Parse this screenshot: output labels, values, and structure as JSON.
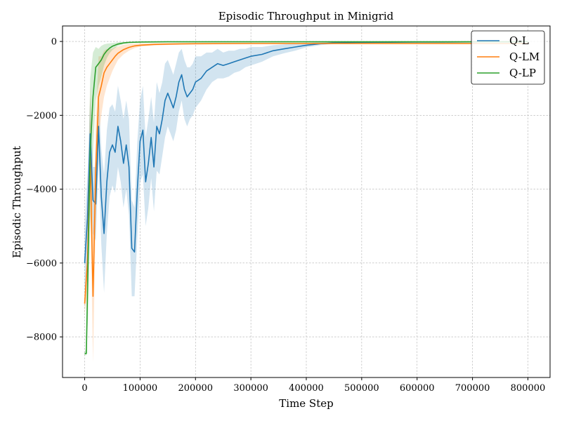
{
  "chart_data": {
    "type": "line",
    "title": "Episodic Throughput in Minigrid",
    "xlabel": "Time Step",
    "ylabel": "Episodic Throughput",
    "xlim": [
      -40000,
      840000
    ],
    "ylim": [
      -9100,
      420
    ],
    "xticks": [
      0,
      100000,
      200000,
      300000,
      400000,
      500000,
      600000,
      700000,
      800000
    ],
    "yticks": [
      0,
      -2000,
      -4000,
      -6000,
      -8000
    ],
    "grid": true,
    "legend_position": "top-right",
    "series": [
      {
        "name": "Q-L",
        "color": "#1f77b4",
        "band_opacity": 0.2,
        "x": [
          0,
          5000,
          10000,
          15000,
          20000,
          25000,
          30000,
          35000,
          40000,
          45000,
          50000,
          55000,
          60000,
          65000,
          70000,
          75000,
          80000,
          85000,
          90000,
          95000,
          100000,
          105000,
          110000,
          115000,
          120000,
          125000,
          130000,
          135000,
          140000,
          145000,
          150000,
          155000,
          160000,
          165000,
          170000,
          175000,
          180000,
          185000,
          190000,
          195000,
          200000,
          210000,
          220000,
          230000,
          240000,
          250000,
          260000,
          270000,
          280000,
          290000,
          300000,
          320000,
          340000,
          360000,
          380000,
          400000,
          425000,
          450000,
          475000,
          500000,
          550000,
          600000,
          650000,
          700000,
          750000,
          800000
        ],
        "y": [
          -6000,
          -4800,
          -2500,
          -4300,
          -4400,
          -2300,
          -4200,
          -5200,
          -3800,
          -3000,
          -2800,
          -3000,
          -2300,
          -2700,
          -3300,
          -2800,
          -3400,
          -5600,
          -5700,
          -4000,
          -2700,
          -2400,
          -3800,
          -3300,
          -2600,
          -3400,
          -2300,
          -2500,
          -2100,
          -1600,
          -1400,
          -1600,
          -1800,
          -1500,
          -1100,
          -900,
          -1300,
          -1500,
          -1400,
          -1300,
          -1100,
          -1000,
          -800,
          -700,
          -600,
          -650,
          -600,
          -550,
          -500,
          -450,
          -400,
          -350,
          -250,
          -200,
          -150,
          -100,
          -60,
          -40,
          -30,
          -25,
          -20,
          -15,
          -15,
          -12,
          -10,
          -10
        ],
        "band_lower": [
          -7000,
          -6000,
          -3500,
          -5200,
          -5400,
          -3300,
          -5500,
          -6800,
          -5200,
          -4200,
          -3900,
          -4100,
          -3400,
          -3800,
          -4500,
          -4000,
          -4700,
          -6900,
          -6900,
          -5300,
          -3800,
          -3600,
          -5000,
          -4500,
          -3700,
          -4600,
          -3500,
          -3600,
          -3100,
          -2600,
          -2300,
          -2500,
          -2700,
          -2400,
          -1900,
          -1600,
          -2100,
          -2300,
          -2100,
          -2000,
          -1800,
          -1600,
          -1300,
          -1100,
          -1000,
          -1000,
          -950,
          -850,
          -800,
          -700,
          -650,
          -550,
          -400,
          -320,
          -250,
          -160,
          -100,
          -70,
          -50,
          -40,
          -30,
          -25,
          -25,
          -20,
          -18,
          -18
        ],
        "band_upper": [
          -5000,
          -3600,
          -1500,
          -3400,
          -3400,
          -1300,
          -2900,
          -3600,
          -2400,
          -1800,
          -1700,
          -1900,
          -1200,
          -1600,
          -2100,
          -1600,
          -2100,
          -4300,
          -4500,
          -2700,
          -1600,
          -1200,
          -2600,
          -2100,
          -1500,
          -2200,
          -1100,
          -1400,
          -1100,
          -600,
          -500,
          -700,
          -900,
          -600,
          -300,
          -200,
          -500,
          -700,
          -700,
          -600,
          -400,
          -400,
          -300,
          -300,
          -200,
          -300,
          -250,
          -250,
          -200,
          -200,
          -150,
          -150,
          -100,
          -80,
          -50,
          -40,
          -20,
          -10,
          -10,
          -10,
          -10,
          -5,
          -5,
          -4,
          -2,
          -2
        ]
      },
      {
        "name": "Q-LM",
        "color": "#ff7f0e",
        "band_opacity": 0.2,
        "x": [
          0,
          5000,
          10000,
          15000,
          20000,
          25000,
          30000,
          35000,
          40000,
          45000,
          50000,
          55000,
          60000,
          70000,
          80000,
          90000,
          100000,
          125000,
          150000,
          200000,
          300000,
          400000,
          500000,
          600000,
          700000,
          800000
        ],
        "y": [
          -7100,
          -6000,
          -3100,
          -6900,
          -3500,
          -1500,
          -1200,
          -850,
          -700,
          -600,
          -500,
          -400,
          -320,
          -220,
          -160,
          -120,
          -100,
          -80,
          -70,
          -60,
          -55,
          -55,
          -55,
          -55,
          -55,
          -55
        ],
        "band_lower": [
          -7400,
          -6800,
          -4200,
          -8700,
          -4800,
          -2600,
          -2000,
          -1500,
          -1200,
          -1000,
          -800,
          -650,
          -500,
          -350,
          -250,
          -180,
          -140,
          -110,
          -95,
          -80,
          -70,
          -70,
          -70,
          -70,
          -70,
          -70
        ],
        "band_upper": [
          -6800,
          -5200,
          -1200,
          -5100,
          -2200,
          -400,
          -400,
          -250,
          -200,
          -200,
          -200,
          -150,
          -140,
          -90,
          -70,
          -60,
          -50,
          -50,
          -45,
          -40,
          -40,
          -40,
          -40,
          -40,
          -40,
          -40
        ]
      },
      {
        "name": "Q-LP",
        "color": "#2ca02c",
        "band_opacity": 0.2,
        "x": [
          0,
          3000,
          6000,
          10000,
          15000,
          20000,
          25000,
          30000,
          35000,
          40000,
          45000,
          50000,
          60000,
          70000,
          80000,
          90000,
          100000,
          150000,
          200000,
          300000,
          400000,
          500000,
          600000,
          700000,
          800000
        ],
        "y": [
          -8450,
          -8450,
          -6000,
          -3000,
          -1500,
          -700,
          -600,
          -500,
          -350,
          -250,
          -180,
          -130,
          -70,
          -40,
          -25,
          -20,
          -15,
          -10,
          -10,
          -10,
          -10,
          -10,
          -10,
          -10,
          -10
        ],
        "band_lower": [
          -8500,
          -8500,
          -7500,
          -5000,
          -3000,
          -1600,
          -1200,
          -950,
          -650,
          -450,
          -320,
          -230,
          -120,
          -70,
          -45,
          -35,
          -25,
          -15,
          -15,
          -15,
          -15,
          -15,
          -15,
          -15,
          -15
        ],
        "band_upper": [
          -8400,
          -8300,
          -4500,
          -1000,
          -300,
          -150,
          -200,
          -120,
          -80,
          -60,
          -50,
          -40,
          -20,
          -15,
          -10,
          -8,
          -6,
          -5,
          -5,
          -5,
          -5,
          -5,
          -5,
          -5,
          -5
        ]
      }
    ]
  }
}
